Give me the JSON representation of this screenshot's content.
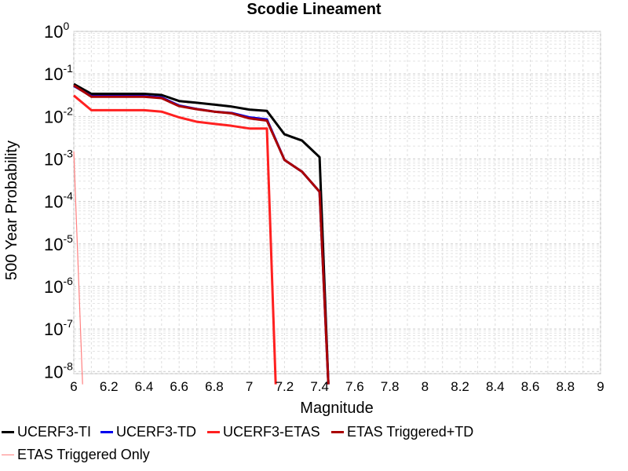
{
  "chart_data": {
    "type": "line",
    "title": "Scodie Lineament",
    "xlabel": "Magnitude",
    "ylabel": "500 Year Probability",
    "xlim": [
      6,
      9
    ],
    "ylim_log10": [
      -8.05,
      0
    ],
    "yscale": "log",
    "grid": true,
    "legend_position": "bottom",
    "x_ticks": [
      "6",
      "6.2",
      "6.4",
      "6.6",
      "6.8",
      "7",
      "7.2",
      "7.4",
      "7.6",
      "7.8",
      "8",
      "8.2",
      "8.4",
      "8.6",
      "8.8",
      "9"
    ],
    "y_ticks": [
      {
        "base": "10",
        "exp": "0",
        "value": 1
      },
      {
        "base": "10",
        "exp": "-1",
        "value": 0.1
      },
      {
        "base": "10",
        "exp": "-2",
        "value": 0.01
      },
      {
        "base": "10",
        "exp": "-3",
        "value": 0.001
      },
      {
        "base": "10",
        "exp": "-4",
        "value": 0.0001
      },
      {
        "base": "10",
        "exp": "-5",
        "value": 1e-05
      },
      {
        "base": "10",
        "exp": "-6",
        "value": 1e-06
      },
      {
        "base": "10",
        "exp": "-7",
        "value": 1e-07
      },
      {
        "base": "10",
        "exp": "-8",
        "value": 1e-08
      }
    ],
    "series": [
      {
        "name": "UCERF3-TI",
        "color": "#000000",
        "points": [
          [
            6.0,
            0.058
          ],
          [
            6.1,
            0.034
          ],
          [
            6.2,
            0.034
          ],
          [
            6.3,
            0.034
          ],
          [
            6.4,
            0.034
          ],
          [
            6.5,
            0.032
          ],
          [
            6.6,
            0.023
          ],
          [
            6.7,
            0.021
          ],
          [
            6.8,
            0.019
          ],
          [
            6.9,
            0.017
          ],
          [
            7.0,
            0.0145
          ],
          [
            7.1,
            0.0135
          ],
          [
            7.2,
            0.0038
          ],
          [
            7.3,
            0.0027
          ],
          [
            7.4,
            0.0011
          ],
          [
            7.45,
            5e-09
          ]
        ]
      },
      {
        "name": "UCERF3-TD",
        "color": "#0000ee",
        "points": [
          [
            6.0,
            0.052
          ],
          [
            6.1,
            0.03
          ],
          [
            6.2,
            0.03
          ],
          [
            6.3,
            0.03
          ],
          [
            6.4,
            0.03
          ],
          [
            6.5,
            0.028
          ],
          [
            6.6,
            0.018
          ],
          [
            6.7,
            0.015
          ],
          [
            6.8,
            0.013
          ],
          [
            6.9,
            0.012
          ],
          [
            7.0,
            0.0095
          ],
          [
            7.1,
            0.0085
          ],
          [
            7.2,
            0.00095
          ],
          [
            7.3,
            0.0005
          ],
          [
            7.4,
            0.00017
          ],
          [
            7.45,
            5e-09
          ]
        ]
      },
      {
        "name": "UCERF3-ETAS",
        "color": "#ff2020",
        "points": [
          [
            6.0,
            0.031
          ],
          [
            6.1,
            0.014
          ],
          [
            6.2,
            0.014
          ],
          [
            6.3,
            0.014
          ],
          [
            6.4,
            0.014
          ],
          [
            6.5,
            0.013
          ],
          [
            6.6,
            0.0095
          ],
          [
            6.7,
            0.0075
          ],
          [
            6.8,
            0.0067
          ],
          [
            6.9,
            0.006
          ],
          [
            7.0,
            0.0052
          ],
          [
            7.1,
            0.0052
          ],
          [
            7.15,
            5e-09
          ]
        ]
      },
      {
        "name": "ETAS Triggered+TD",
        "color": "#aa0000",
        "points": [
          [
            6.0,
            0.054
          ],
          [
            6.1,
            0.029
          ],
          [
            6.2,
            0.029
          ],
          [
            6.3,
            0.029
          ],
          [
            6.4,
            0.029
          ],
          [
            6.5,
            0.027
          ],
          [
            6.6,
            0.0175
          ],
          [
            6.7,
            0.0148
          ],
          [
            6.8,
            0.013
          ],
          [
            6.9,
            0.0118
          ],
          [
            7.0,
            0.009
          ],
          [
            7.1,
            0.008
          ],
          [
            7.2,
            0.00095
          ],
          [
            7.3,
            0.0005
          ],
          [
            7.4,
            0.00017
          ],
          [
            7.45,
            5e-09
          ]
        ]
      },
      {
        "name": "ETAS Triggered Only",
        "color": "#ff8080",
        "points": [
          [
            6.0,
            0.0015
          ],
          [
            6.05,
            5e-09
          ]
        ]
      }
    ]
  }
}
